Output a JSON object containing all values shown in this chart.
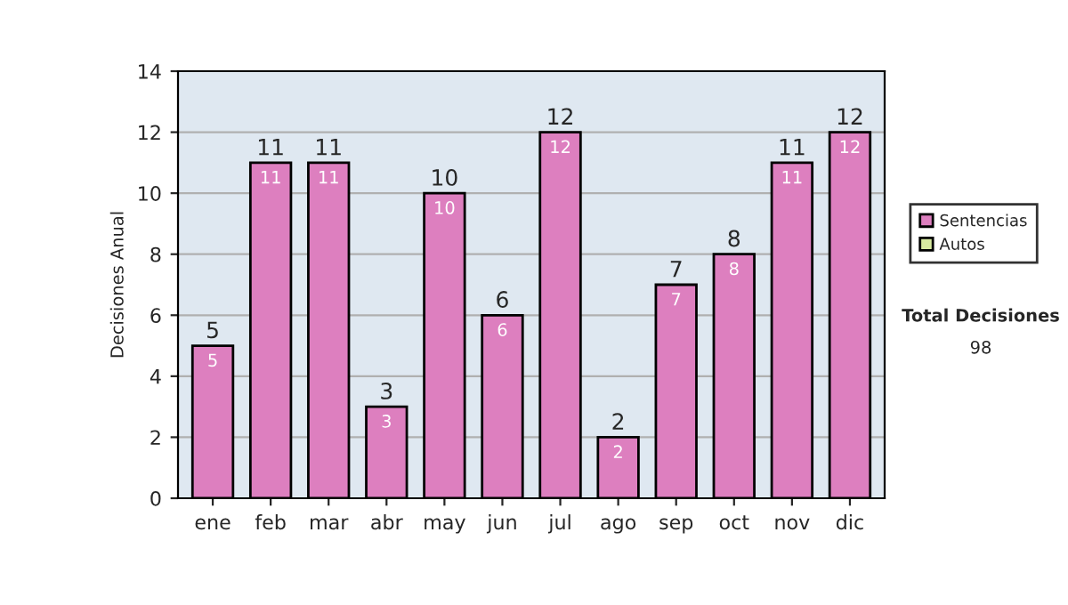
{
  "chart_data": {
    "type": "bar",
    "ylabel": "Decisiones Anual",
    "categories": [
      "ene",
      "feb",
      "mar",
      "abr",
      "may",
      "jun",
      "jul",
      "ago",
      "sep",
      "oct",
      "nov",
      "dic"
    ],
    "series": [
      {
        "name": "Sentencias",
        "color": "#dd7fbf",
        "values": [
          5,
          11,
          11,
          3,
          10,
          6,
          12,
          2,
          7,
          8,
          11,
          12
        ]
      },
      {
        "name": "Autos",
        "color": "#d8eaa0",
        "values": [
          null,
          null,
          null,
          null,
          null,
          null,
          null,
          null,
          null,
          null,
          null,
          null
        ]
      }
    ],
    "stacked": true,
    "data_labels": true,
    "totals": [
      "5",
      "11",
      "11",
      "3",
      "10",
      "6",
      "12",
      "2",
      "7",
      "8",
      "11",
      "12"
    ],
    "ylim": [
      0,
      14
    ],
    "yticks": [
      0,
      2,
      4,
      6,
      8,
      10,
      12,
      14
    ],
    "grid": "y",
    "legend": "right",
    "annotations": [
      "Total Decisiones",
      "98"
    ]
  }
}
